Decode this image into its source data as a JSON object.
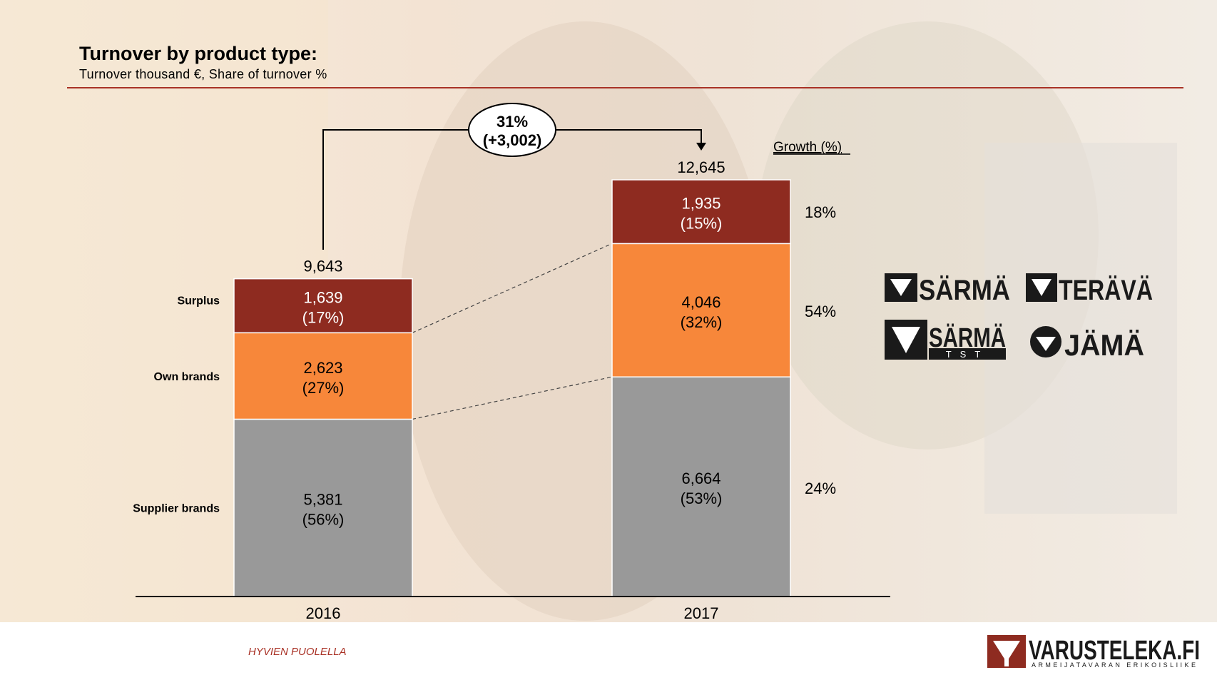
{
  "title": "Turnover by product type:",
  "subtitle": "Turnover thousand €, Share of turnover %",
  "growth_header": "Growth (%)",
  "growth_values": [
    "18%",
    "54%",
    "24%"
  ],
  "callout": {
    "line1": "31%",
    "line2": "(+3,002)"
  },
  "footer_tag": "HYVIEN PUOLELLA",
  "brands": {
    "sarma": "SÄRMÄ",
    "terava": "TERÄVÄ",
    "sarma_tst": "SÄRMÄ",
    "sarma_tst_sub": "TST",
    "jama": "JÄMÄ",
    "varusteleka": "VARUSTELEKA.FI",
    "varusteleka_sub": "ARMEIJATAVARAN ERIKOISLIIKE"
  },
  "colors": {
    "surplus": "#8e2b20",
    "own_brands": "#f7873a",
    "supplier_brands": "#999999",
    "accent": "#a93226"
  },
  "chart_data": {
    "type": "bar",
    "stacked": true,
    "categories": [
      "2016",
      "2017"
    ],
    "totals": [
      9643,
      12645
    ],
    "total_labels": [
      "9,643",
      "12,645"
    ],
    "series": [
      {
        "name": "Supplier brands",
        "values": [
          5381,
          6664
        ],
        "labels": [
          "5,381",
          "6,664"
        ],
        "shares": [
          "(56%)",
          "(53%)"
        ],
        "color": "#999999"
      },
      {
        "name": "Own brands",
        "values": [
          2623,
          4046
        ],
        "labels": [
          "2,623",
          "4,046"
        ],
        "shares": [
          "(27%)",
          "(32%)"
        ],
        "color": "#f7873a"
      },
      {
        "name": "Surplus",
        "values": [
          1639,
          1935
        ],
        "labels": [
          "1,639",
          "1,935"
        ],
        "shares": [
          "(17%)",
          "(15%)"
        ],
        "color": "#8e2b20"
      }
    ],
    "xlabel": "",
    "ylabel": "",
    "ylim": [
      0,
      12645
    ],
    "grid": false
  }
}
